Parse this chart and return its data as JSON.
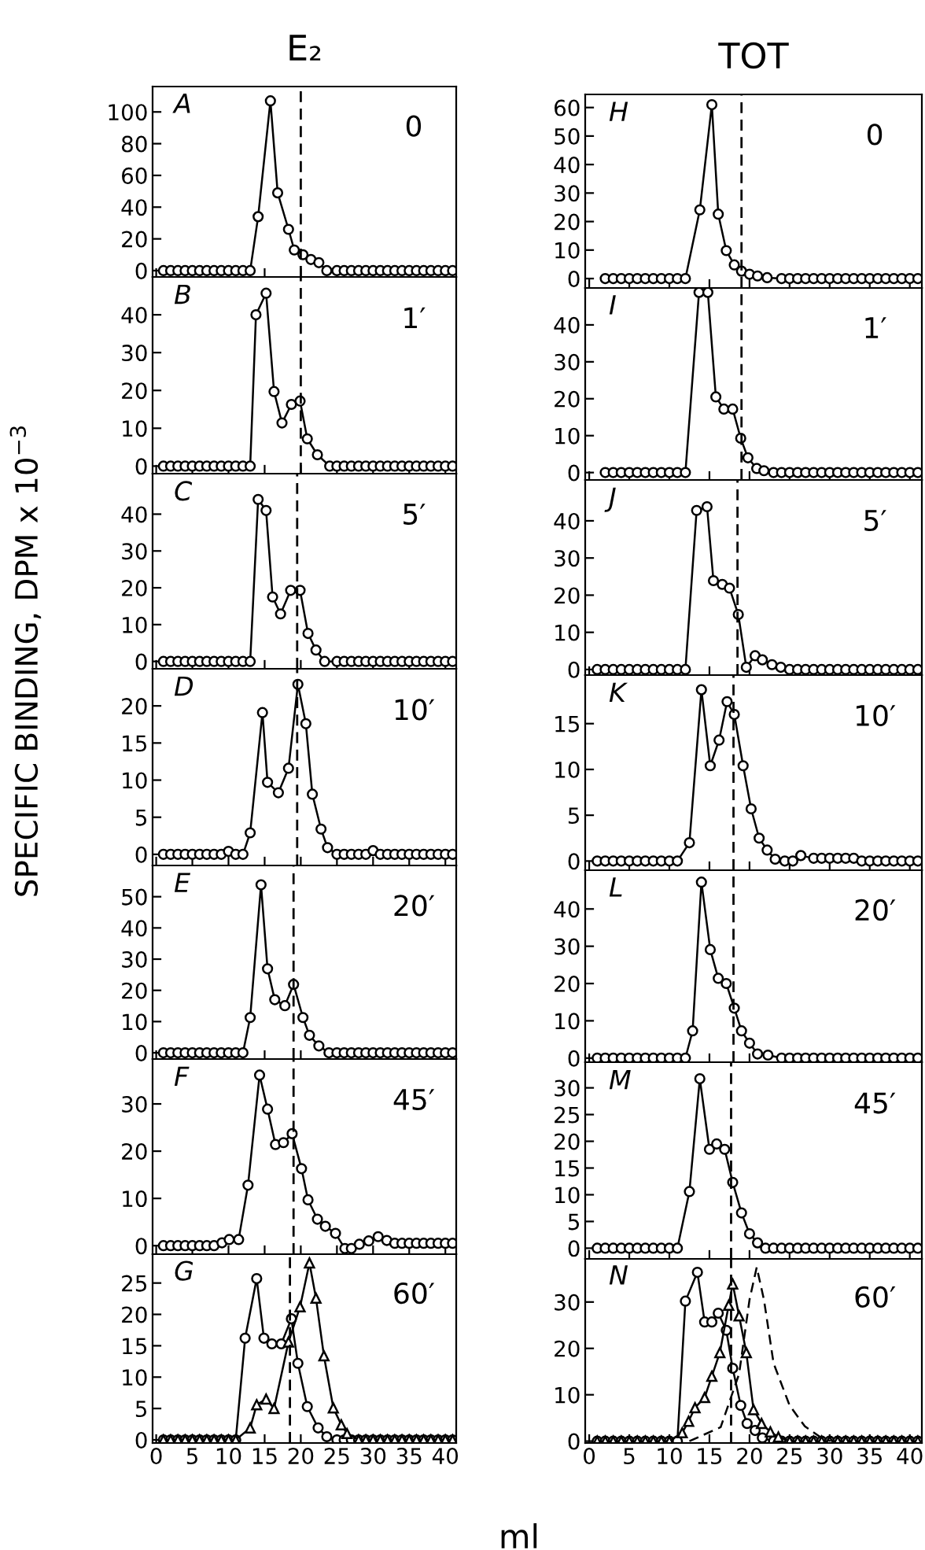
{
  "chart_data": [
    {
      "type": "line",
      "title": "E₂",
      "annotations": [
        "A",
        "0"
      ],
      "xlim": [
        -0.5,
        41.5
      ],
      "xticks": [
        0,
        5,
        10,
        15,
        20,
        25,
        30,
        35,
        40
      ],
      "ylim": [
        -4,
        116
      ],
      "yticks": [
        0,
        20,
        40,
        60,
        80,
        100
      ],
      "tick_labels": "y",
      "ref_lines": [
        {
          "axis": "x",
          "value": 20,
          "color": "#000000",
          "line_style": "dashed"
        }
      ],
      "series": [
        {
          "color": "#000000",
          "marker": "circle",
          "line_style": "solid",
          "x": [
            1,
            2,
            3,
            4,
            5,
            6,
            7,
            8,
            9,
            10,
            11,
            12,
            13,
            14.1,
            15.8,
            16.8,
            18.3,
            19.1,
            20.3,
            21.4,
            22.5,
            23.6,
            25,
            26,
            27,
            28,
            29,
            30,
            31,
            32,
            33,
            34,
            35,
            36,
            37,
            38,
            39,
            40,
            41
          ],
          "values": [
            0,
            0,
            0,
            0,
            0,
            0,
            0,
            0,
            0,
            0,
            0,
            0,
            0,
            34,
            107,
            49,
            26,
            13,
            10,
            7,
            5,
            0,
            0,
            0,
            0,
            0,
            0,
            0,
            0,
            0,
            0,
            0,
            0,
            0,
            0,
            0,
            0,
            0,
            0
          ]
        }
      ]
    },
    {
      "type": "line",
      "annotations": [
        "B",
        "1′"
      ],
      "xlim": [
        -0.5,
        41.5
      ],
      "xticks": [
        0,
        5,
        10,
        15,
        20,
        25,
        30,
        35,
        40
      ],
      "ylim": [
        -2,
        50
      ],
      "yticks": [
        0,
        10,
        20,
        30,
        40
      ],
      "tick_labels": "y",
      "ref_lines": [
        {
          "axis": "x",
          "value": 20,
          "color": "#000000",
          "line_style": "dashed"
        }
      ],
      "series": [
        {
          "color": "#000000",
          "marker": "circle",
          "line_style": "solid",
          "x": [
            1,
            2,
            3,
            4,
            5,
            6,
            7,
            8,
            9,
            10,
            11,
            12,
            13,
            13.8,
            15.2,
            16.3,
            17.4,
            18.7,
            19.9,
            20.9,
            22.3,
            24,
            25,
            26,
            27,
            28,
            29,
            30,
            31,
            32,
            33,
            34,
            35,
            36,
            37,
            38,
            39,
            40,
            41
          ],
          "values": [
            0,
            0,
            0,
            0,
            0,
            0,
            0,
            0,
            0,
            0,
            0,
            0,
            0,
            40,
            45.7,
            19.7,
            11.4,
            16.3,
            17.2,
            7.2,
            3,
            0,
            0,
            0,
            0,
            0,
            0,
            0,
            0,
            0,
            0,
            0,
            0,
            0,
            0,
            0,
            0,
            0,
            0
          ]
        }
      ]
    },
    {
      "type": "line",
      "annotations": [
        "C",
        "5′"
      ],
      "xlim": [
        -0.5,
        41.5
      ],
      "xticks": [
        0,
        5,
        10,
        15,
        20,
        25,
        30,
        35,
        40
      ],
      "ylim": [
        -2,
        51
      ],
      "yticks": [
        0,
        10,
        20,
        30,
        40
      ],
      "tick_labels": "y",
      "ref_lines": [
        {
          "axis": "x",
          "value": 19.5,
          "color": "#000000",
          "line_style": "dashed"
        }
      ],
      "series": [
        {
          "color": "#000000",
          "marker": "circle",
          "line_style": "solid",
          "x": [
            1,
            2,
            3,
            4,
            5,
            6,
            7,
            8,
            9,
            10,
            11,
            12,
            13,
            14.1,
            15.2,
            16.1,
            17.2,
            18.6,
            19.9,
            21,
            22.1,
            23.3,
            25,
            26,
            27,
            28,
            29,
            30,
            31,
            32,
            33,
            34,
            35,
            36,
            37,
            38,
            39,
            40,
            41
          ],
          "values": [
            0,
            0,
            0,
            0,
            0,
            0,
            0,
            0,
            0,
            0,
            0,
            0,
            0,
            44,
            41,
            17.5,
            12.9,
            19.3,
            19.3,
            7.6,
            3.1,
            0,
            0,
            0,
            0,
            0,
            0,
            0,
            0,
            0,
            0,
            0,
            0,
            0,
            0,
            0,
            0,
            0,
            0
          ]
        }
      ]
    },
    {
      "type": "line",
      "ylabel": "SPECIFIC BINDING, DPM x 10$^{−3}$",
      "annotations": [
        "D",
        "10′"
      ],
      "xlim": [
        -0.5,
        41.5
      ],
      "xticks": [
        0,
        5,
        10,
        15,
        20,
        25,
        30,
        35,
        40
      ],
      "ylim": [
        -1.5,
        25
      ],
      "yticks": [
        0,
        5,
        10,
        15,
        20
      ],
      "tick_labels": "y",
      "ref_lines": [
        {
          "axis": "x",
          "value": 19.5,
          "color": "#000000",
          "line_style": "dashed"
        }
      ],
      "series": [
        {
          "color": "#000000",
          "marker": "circle",
          "line_style": "solid",
          "x": [
            1,
            2,
            3,
            4,
            5,
            6,
            7,
            8,
            9,
            10,
            11,
            12,
            13,
            14.7,
            15.4,
            16.9,
            18.3,
            19.6,
            20.7,
            21.6,
            22.8,
            23.7,
            25,
            26,
            27,
            28,
            29,
            30,
            31,
            32,
            33,
            34,
            35,
            36,
            37,
            38,
            39,
            40,
            41
          ],
          "values": [
            0,
            0,
            0,
            0,
            0,
            0,
            0,
            0,
            0,
            0.4,
            0,
            0,
            2.9,
            19.1,
            9.7,
            8.3,
            11.6,
            22.9,
            17.6,
            8.1,
            3.4,
            0.9,
            0,
            0,
            0,
            0,
            0,
            0.5,
            0,
            0,
            0,
            0,
            0,
            0,
            0,
            0,
            0,
            0,
            0
          ]
        }
      ]
    },
    {
      "type": "line",
      "annotations": [
        "E",
        "20′"
      ],
      "xlim": [
        -0.5,
        41.5
      ],
      "xticks": [
        0,
        5,
        10,
        15,
        20,
        25,
        30,
        35,
        40
      ],
      "ylim": [
        -2,
        60
      ],
      "yticks": [
        0,
        10,
        20,
        30,
        40,
        50
      ],
      "tick_labels": "y",
      "ref_lines": [
        {
          "axis": "x",
          "value": 19,
          "color": "#000000",
          "line_style": "dashed"
        }
      ],
      "series": [
        {
          "color": "#000000",
          "marker": "circle",
          "line_style": "solid",
          "x": [
            1,
            2,
            3,
            4,
            5,
            6,
            7,
            8,
            9,
            10,
            11,
            12,
            13,
            14.5,
            15.4,
            16.4,
            17.8,
            19,
            20.3,
            21.2,
            22.5,
            23.9,
            25,
            26,
            27,
            28,
            29,
            30,
            31,
            32,
            33,
            34,
            35,
            36,
            37,
            38,
            39,
            40,
            41
          ],
          "values": [
            0,
            0,
            0,
            0,
            0,
            0,
            0,
            0,
            0,
            0,
            0,
            0,
            11.3,
            53.8,
            26.9,
            17,
            15.1,
            21.9,
            11.3,
            5.6,
            2.2,
            0,
            0,
            0,
            0,
            0,
            0,
            0,
            0,
            0,
            0,
            0,
            0,
            0,
            0,
            0,
            0,
            0,
            0
          ]
        }
      ]
    },
    {
      "type": "line",
      "annotations": [
        "F",
        "45′"
      ],
      "xlim": [
        -0.5,
        41.5
      ],
      "xticks": [
        0,
        5,
        10,
        15,
        20,
        25,
        30,
        35,
        40
      ],
      "ylim": [
        -1.8,
        39.5
      ],
      "yticks": [
        0,
        10,
        20,
        30
      ],
      "tick_labels": "y",
      "ref_lines": [
        {
          "axis": "x",
          "value": 19,
          "color": "#000000",
          "line_style": "dashed"
        }
      ],
      "series": [
        {
          "color": "#000000",
          "marker": "circle",
          "line_style": "solid",
          "x": [
            1,
            2,
            3,
            4,
            5,
            6,
            7,
            8,
            9.1,
            10.1,
            11.4,
            12.7,
            14.3,
            15.4,
            16.5,
            17.6,
            18.8,
            20.1,
            21,
            22.3,
            23.4,
            24.8,
            26.1,
            27,
            28.1,
            29.4,
            30.7,
            31.9,
            33,
            34,
            35,
            36,
            37,
            38,
            39,
            40,
            41
          ],
          "values": [
            0,
            0,
            0,
            0,
            0,
            0,
            0,
            0,
            0.6,
            1.3,
            1.3,
            12.8,
            36.1,
            28.9,
            21.4,
            21.8,
            23.7,
            16.3,
            9.7,
            5.6,
            4.1,
            2.6,
            -0.6,
            -0.6,
            0.3,
            1,
            1.9,
            1.1,
            0.5,
            0.5,
            0.5,
            0.5,
            0.5,
            0.5,
            0.5,
            0.5,
            0.5
          ]
        }
      ]
    },
    {
      "type": "line",
      "xlabel": "ml",
      "annotations": [
        "G",
        "60′"
      ],
      "xlim": [
        -0.5,
        41.5
      ],
      "xticks": [
        0,
        5,
        10,
        15,
        20,
        25,
        30,
        35,
        40
      ],
      "ylim": [
        -0.5,
        29.6
      ],
      "yticks": [
        0,
        5,
        10,
        15,
        20,
        25
      ],
      "ref_lines": [
        {
          "axis": "x",
          "value": 18.5,
          "color": "#000000",
          "line_style": "dashed"
        }
      ],
      "series": [
        {
          "color": "#000000",
          "marker": "circle",
          "line_style": "solid",
          "x": [
            1,
            2,
            3,
            4,
            5,
            6,
            7,
            8,
            9,
            10,
            11,
            12.3,
            13.9,
            14.9,
            16,
            17.3,
            18.7,
            19.6,
            20.9,
            22.4,
            23.6,
            25,
            26,
            27,
            28,
            29,
            30,
            31,
            32,
            33,
            34,
            35,
            36,
            37,
            38,
            39,
            40,
            41
          ],
          "values": [
            0,
            0,
            0,
            0,
            0,
            0,
            0,
            0,
            0,
            0,
            0,
            16.2,
            25.7,
            16.2,
            15.3,
            15.3,
            19.3,
            12.2,
            5.3,
            1.9,
            0.5,
            0,
            0,
            0,
            0,
            0,
            0,
            0,
            0,
            0,
            0,
            0,
            0,
            0,
            0,
            0,
            0,
            0
          ]
        },
        {
          "color": "#000000",
          "marker": "triangle",
          "line_style": "solid",
          "x": [
            1,
            2,
            3,
            4,
            5,
            6,
            7,
            8,
            9,
            10,
            11,
            13,
            13.9,
            15.2,
            16.3,
            18.3,
            19.9,
            21.2,
            22.1,
            23.2,
            24.5,
            25.6,
            26.4,
            28,
            29,
            30,
            31,
            32,
            33,
            34,
            35,
            36,
            37,
            38,
            39,
            40,
            41
          ],
          "values": [
            0,
            0,
            0,
            0,
            0,
            0,
            0,
            0,
            0,
            0,
            0,
            1.9,
            5.6,
            6.5,
            5,
            15.6,
            21.2,
            28.2,
            22.6,
            13.4,
            5.1,
            2.4,
            1,
            0,
            0,
            0,
            0,
            0,
            0,
            0,
            0,
            0,
            0,
            0,
            0,
            0,
            0
          ]
        }
      ]
    },
    {
      "type": "line",
      "title": "TOT",
      "annotations": [
        "H",
        "0"
      ],
      "xlim": [
        -0.5,
        41.5
      ],
      "xticks": [
        0,
        5,
        10,
        15,
        20,
        25,
        30,
        35,
        40
      ],
      "ylim": [
        -3.3,
        64.6
      ],
      "yticks": [
        0,
        10,
        20,
        30,
        40,
        50,
        60
      ],
      "tick_labels": "y",
      "ref_lines": [
        {
          "axis": "x",
          "value": 19,
          "color": "#000000",
          "line_style": "dashed"
        }
      ],
      "series": [
        {
          "color": "#000000",
          "marker": "circle",
          "line_style": "solid",
          "x": [
            2,
            3,
            4,
            5,
            6,
            7,
            8,
            9,
            10,
            11,
            12,
            13.8,
            15.3,
            16.1,
            17.1,
            18.1,
            19,
            20,
            21,
            22.2,
            24,
            25,
            26,
            27,
            28,
            29,
            30,
            31,
            32,
            33,
            34,
            35,
            36,
            37,
            38,
            39,
            40,
            41
          ],
          "values": [
            0,
            0,
            0,
            0,
            0,
            0,
            0,
            0,
            0,
            0,
            0,
            24.1,
            61,
            22.6,
            9.8,
            4.8,
            2.6,
            1.5,
            0.9,
            0.3,
            0,
            0,
            0,
            0,
            0,
            0,
            0,
            0,
            0,
            0,
            0,
            0,
            0,
            0,
            0,
            0,
            0,
            0
          ]
        }
      ]
    },
    {
      "type": "line",
      "annotations": [
        "I",
        "1′"
      ],
      "xlim": [
        -0.5,
        41.5
      ],
      "xticks": [
        0,
        5,
        10,
        15,
        20,
        25,
        30,
        35,
        40
      ],
      "ylim": [
        -2,
        50
      ],
      "yticks": [
        0,
        10,
        20,
        30,
        40
      ],
      "tick_labels": "y",
      "ref_lines": [
        {
          "axis": "x",
          "value": 19,
          "color": "#000000",
          "line_style": "dashed"
        }
      ],
      "series": [
        {
          "color": "#000000",
          "marker": "circle",
          "line_style": "solid",
          "x": [
            2,
            3,
            4,
            5,
            6,
            7,
            8,
            9,
            10,
            11,
            12,
            13.7,
            14.8,
            15.8,
            16.8,
            17.9,
            18.9,
            19.8,
            20.9,
            21.8,
            23,
            24,
            25,
            26,
            27,
            28,
            29,
            30,
            31,
            32,
            33,
            34,
            35,
            36,
            37,
            38,
            39,
            40,
            41
          ],
          "values": [
            0,
            0,
            0,
            0,
            0,
            0,
            0,
            0,
            0,
            0,
            0,
            48.8,
            48.8,
            20.5,
            17.2,
            17.2,
            9.3,
            4,
            1.1,
            0.5,
            0,
            0,
            0,
            0,
            0,
            0,
            0,
            0,
            0,
            0,
            0,
            0,
            0,
            0,
            0,
            0,
            0,
            0,
            0
          ]
        }
      ]
    },
    {
      "type": "line",
      "annotations": [
        "J",
        "5′"
      ],
      "xlim": [
        -0.5,
        41.5
      ],
      "xticks": [
        0,
        5,
        10,
        15,
        20,
        25,
        30,
        35,
        40
      ],
      "ylim": [
        -1.5,
        51
      ],
      "yticks": [
        0,
        10,
        20,
        30,
        40
      ],
      "tick_labels": "y",
      "ref_lines": [
        {
          "axis": "x",
          "value": 18.5,
          "color": "#000000",
          "line_style": "dashed"
        }
      ],
      "series": [
        {
          "color": "#000000",
          "marker": "circle",
          "line_style": "solid",
          "x": [
            1,
            2,
            3,
            4,
            5,
            6,
            7,
            8,
            9,
            10,
            11,
            12,
            13.4,
            14.7,
            15.5,
            16.6,
            17.5,
            18.6,
            19.6,
            20.7,
            21.6,
            22.8,
            23.9,
            25,
            26,
            27,
            28,
            29,
            30,
            31,
            32,
            33,
            34,
            35,
            36,
            37,
            38,
            39,
            40,
            41
          ],
          "values": [
            0,
            0,
            0,
            0,
            0,
            0,
            0,
            0,
            0,
            0,
            0,
            0,
            42.8,
            43.8,
            23.9,
            22.9,
            21.9,
            14.8,
            0.6,
            3.7,
            2.6,
            1.3,
            0.6,
            0,
            0,
            0,
            0,
            0,
            0,
            0,
            0,
            0,
            0,
            0,
            0,
            0,
            0,
            0,
            0,
            0
          ]
        }
      ]
    },
    {
      "type": "line",
      "annotations": [
        "K",
        "10′"
      ],
      "xlim": [
        -0.5,
        41.5
      ],
      "xticks": [
        0,
        5,
        10,
        15,
        20,
        25,
        30,
        35,
        40
      ],
      "ylim": [
        -1,
        20.3
      ],
      "yticks": [
        0,
        5,
        10,
        15
      ],
      "tick_labels": "y",
      "ref_lines": [
        {
          "axis": "x",
          "value": 18,
          "color": "#000000",
          "line_style": "dashed"
        }
      ],
      "series": [
        {
          "color": "#000000",
          "marker": "circle",
          "line_style": "solid",
          "x": [
            1,
            2,
            3,
            4,
            5,
            6,
            7,
            8,
            9,
            10,
            11,
            12.5,
            14,
            15.1,
            16.2,
            17.2,
            18.1,
            19.2,
            20.2,
            21.2,
            22.2,
            23.2,
            24.4,
            25.4,
            26.4,
            28,
            29,
            30,
            31,
            32,
            33,
            34,
            35,
            36,
            37,
            38,
            39,
            40,
            41
          ],
          "values": [
            0,
            0,
            0,
            0,
            0,
            0,
            0,
            0,
            0,
            0,
            0,
            2,
            18.7,
            10.4,
            13.2,
            17.4,
            16,
            10.4,
            5.7,
            2.5,
            1.2,
            0.2,
            0,
            0,
            0.6,
            0.3,
            0.3,
            0.3,
            0.3,
            0.3,
            0.3,
            0,
            0,
            0,
            0,
            0,
            0,
            0,
            0
          ]
        }
      ]
    },
    {
      "type": "line",
      "annotations": [
        "L",
        "20′"
      ],
      "xlim": [
        -0.5,
        41.5
      ],
      "xticks": [
        0,
        5,
        10,
        15,
        20,
        25,
        30,
        35,
        40
      ],
      "ylim": [
        -1.1,
        50.4
      ],
      "yticks": [
        0,
        10,
        20,
        30,
        40
      ],
      "tick_labels": "y",
      "ref_lines": [
        {
          "axis": "x",
          "value": 18,
          "color": "#000000",
          "line_style": "dashed"
        }
      ],
      "series": [
        {
          "color": "#000000",
          "marker": "circle",
          "line_style": "solid",
          "x": [
            1,
            2,
            3,
            4,
            5,
            6,
            7,
            8,
            9,
            10,
            11,
            12,
            12.9,
            14,
            15.1,
            16.1,
            17.1,
            18.1,
            19,
            20,
            21,
            22.3,
            24,
            25,
            26,
            27,
            28,
            29,
            30,
            31,
            32,
            33,
            34,
            35,
            36,
            37,
            38,
            39,
            40,
            41
          ],
          "values": [
            0,
            0,
            0,
            0,
            0,
            0,
            0,
            0,
            0,
            0,
            0,
            0,
            7.3,
            47.2,
            29.1,
            21.4,
            20,
            13.4,
            7.3,
            4,
            1.1,
            0.8,
            0,
            0,
            0,
            0,
            0,
            0,
            0,
            0,
            0,
            0,
            0,
            0,
            0,
            0,
            0,
            0,
            0,
            0
          ]
        }
      ]
    },
    {
      "type": "line",
      "annotations": [
        "M",
        "45′"
      ],
      "xlim": [
        -0.5,
        41.5
      ],
      "xticks": [
        0,
        5,
        10,
        15,
        20,
        25,
        30,
        35,
        40
      ],
      "ylim": [
        -2,
        34.8
      ],
      "yticks": [
        0,
        5,
        10,
        15,
        20,
        25,
        30
      ],
      "tick_labels": "y",
      "ref_lines": [
        {
          "axis": "x",
          "value": 17.7,
          "color": "#000000",
          "line_style": "dashed"
        }
      ],
      "series": [
        {
          "color": "#000000",
          "marker": "circle",
          "line_style": "solid",
          "x": [
            1,
            2,
            3,
            4,
            5,
            6,
            7,
            8,
            9,
            10,
            11,
            12.5,
            13.8,
            15,
            15.9,
            16.9,
            17.9,
            19,
            20,
            21,
            22,
            23,
            24,
            25,
            26,
            27,
            28,
            29,
            30,
            31,
            32,
            33,
            34,
            35,
            36,
            37,
            38,
            39,
            40,
            41
          ],
          "values": [
            0,
            0,
            0,
            0,
            0,
            0,
            0,
            0,
            0,
            0,
            0,
            10.6,
            31.7,
            18.5,
            19.5,
            18.5,
            12.3,
            6.6,
            2.7,
            1,
            0,
            0,
            0,
            0,
            0,
            0,
            0,
            0,
            0,
            0,
            0,
            0,
            0,
            0,
            0,
            0,
            0,
            0,
            0,
            0
          ]
        }
      ]
    },
    {
      "type": "line",
      "annotations": [
        "N",
        "60′"
      ],
      "xlim": [
        -0.5,
        41.5
      ],
      "xticks": [
        0,
        5,
        10,
        15,
        20,
        25,
        30,
        35,
        40
      ],
      "ylim": [
        -0.4,
        39.3
      ],
      "yticks": [
        0,
        10,
        20,
        30
      ],
      "ref_lines": [
        {
          "axis": "x",
          "value": 17.7,
          "color": "#000000",
          "line_style": "dashed"
        }
      ],
      "series": [
        {
          "color": "#000000",
          "marker": "circle",
          "line_style": "solid",
          "x": [
            1,
            2,
            3,
            4,
            5,
            6,
            7,
            8,
            9,
            10,
            11,
            12,
            13.5,
            14.4,
            15.3,
            16.1,
            17.1,
            17.9,
            18.9,
            19.7,
            20.7,
            21.6,
            23,
            24,
            25,
            26,
            27,
            28,
            29,
            30,
            31,
            32,
            33,
            34,
            35,
            36,
            37,
            38,
            39,
            40,
            41
          ],
          "values": [
            0,
            0,
            0,
            0,
            0,
            0,
            0,
            0,
            0,
            0,
            0,
            30.2,
            36.4,
            25.7,
            25.7,
            27.6,
            23.9,
            15.7,
            7.7,
            3.8,
            2.3,
            0.7,
            0,
            0,
            0,
            0,
            0,
            0,
            0,
            0,
            0,
            0,
            0,
            0,
            0,
            0,
            0,
            0,
            0,
            0,
            0
          ]
        },
        {
          "color": "#000000",
          "marker": "triangle",
          "line_style": "solid",
          "x": [
            1,
            2,
            3,
            4,
            5,
            6,
            7,
            8,
            9,
            10,
            11.6,
            12.4,
            13.2,
            14.4,
            15.3,
            16.3,
            17.4,
            17.9,
            18.7,
            19.6,
            20.5,
            21.5,
            22.6,
            23.6,
            25,
            26,
            27,
            28,
            29,
            30,
            31,
            32,
            33,
            34,
            35,
            36,
            37,
            38,
            39,
            40,
            41
          ],
          "values": [
            0,
            0,
            0,
            0,
            0,
            0,
            0,
            0,
            0,
            0,
            1.8,
            4.3,
            7.2,
            9.4,
            14,
            19.1,
            29.3,
            33.9,
            27,
            19.1,
            6.8,
            3.8,
            2,
            0.9,
            0,
            0,
            0,
            0,
            0,
            0,
            0,
            0,
            0,
            0,
            0,
            0,
            0,
            0,
            0,
            0,
            0
          ]
        },
        {
          "color": "#000000",
          "marker": "none",
          "line_style": "dashed",
          "x": [
            12.5,
            16.4,
            18.7,
            20,
            20.9,
            21.8,
            23,
            25,
            26.9,
            28.8,
            30.1
          ],
          "values": [
            0,
            3,
            14.5,
            30.5,
            37.5,
            30.5,
            16.8,
            7.7,
            3.2,
            0.9,
            0
          ]
        }
      ]
    }
  ]
}
